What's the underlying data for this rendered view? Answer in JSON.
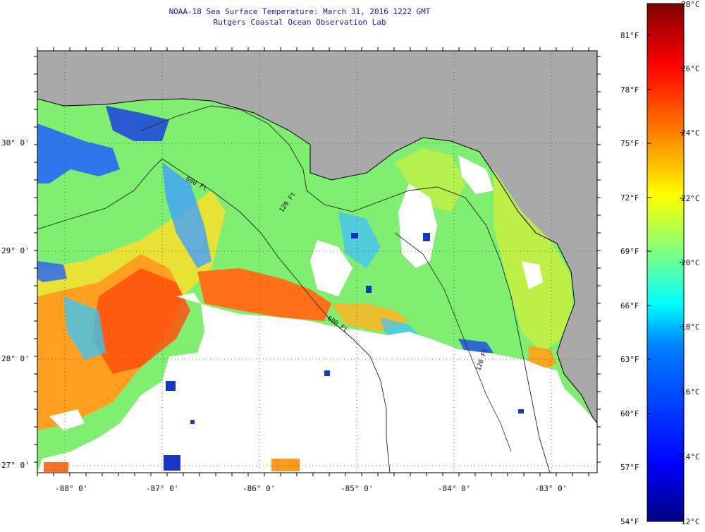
{
  "header": {
    "title": "NOAA-18 Sea Surface Temperature:  March 31, 2016 1222 GMT",
    "subtitle": "Rutgers Coastal Ocean Observation Lab"
  },
  "map": {
    "lat_labels": [
      "30° 0'",
      "29° 0'",
      "28° 0'",
      "27° 0'"
    ],
    "lon_labels": [
      "-88° 0'",
      "-87° 0'",
      "-86° 0'",
      "-85° 0'",
      "-84° 0'",
      "-83° 0'"
    ],
    "isobath_labels": [
      "600 Ft",
      "120 Ft",
      "600 Ft",
      "120 Ft"
    ],
    "colors": {
      "land": "#a9a9a9",
      "cloud": "#ffffff",
      "border": "#000000"
    }
  },
  "colorbar": {
    "fahrenheit_labels": [
      "81°F",
      "78°F",
      "75°F",
      "72°F",
      "69°F",
      "66°F",
      "63°F",
      "60°F",
      "57°F",
      "54°F"
    ],
    "celsius_labels": [
      "28°C",
      "26°C",
      "24°C",
      "22°C",
      "20°C",
      "18°C",
      "16°C",
      "14°C",
      "12°C"
    ],
    "colors": [
      "#00007f",
      "#0000ff",
      "#0080ff",
      "#00ffff",
      "#80ff80",
      "#ffff00",
      "#ff8000",
      "#ff0000",
      "#7f0000"
    ]
  }
}
